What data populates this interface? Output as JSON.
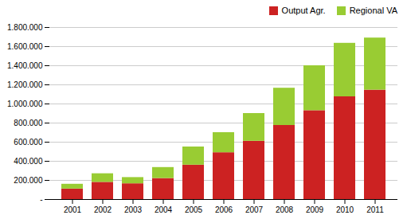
{
  "chart_data": {
    "type": "bar",
    "stacked": true,
    "categories": [
      "2001",
      "2002",
      "2003",
      "2004",
      "2005",
      "2006",
      "2007",
      "2008",
      "2009",
      "2010",
      "2011"
    ],
    "series": [
      {
        "name": "Output Agr.",
        "color": "#cc2222",
        "values": [
          110000,
          180000,
          165000,
          220000,
          360000,
          490000,
          610000,
          775000,
          930000,
          1075000,
          1145000
        ]
      },
      {
        "name": "Regional VA",
        "color": "#99cc33",
        "values": [
          50000,
          90000,
          65000,
          115000,
          190000,
          210000,
          290000,
          390000,
          470000,
          560000,
          545000
        ]
      }
    ],
    "ylim": [
      0,
      1800000
    ],
    "yticks": [
      {
        "value": 0,
        "label": "-"
      },
      {
        "value": 200000,
        "label": "200.000"
      },
      {
        "value": 400000,
        "label": "400.000"
      },
      {
        "value": 600000,
        "label": "600.000"
      },
      {
        "value": 800000,
        "label": "800.000"
      },
      {
        "value": 1000000,
        "label": "1.000.000"
      },
      {
        "value": 1200000,
        "label": "1.200.000"
      },
      {
        "value": 1400000,
        "label": "1.400.000"
      },
      {
        "value": 1600000,
        "label": "1.600.000"
      },
      {
        "value": 1800000,
        "label": "1.800.000"
      }
    ],
    "grid": true,
    "legend": "upper right"
  }
}
